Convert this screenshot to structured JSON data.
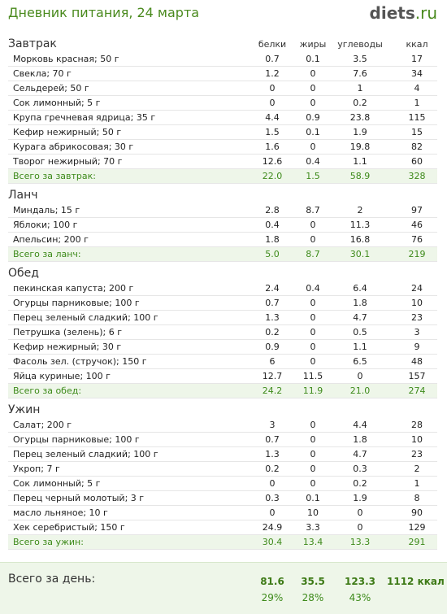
{
  "header": {
    "title": "Дневник питания, 24 марта",
    "logo_main": "diets",
    "logo_tld": ".ru"
  },
  "columns": {
    "b": "белки",
    "z": "жиры",
    "u": "углеводы",
    "k": "ккал"
  },
  "meals": [
    {
      "title": "Завтрак",
      "items": [
        [
          "Морковь красная; 50 г",
          "0.7",
          "0.1",
          "3.5",
          "17"
        ],
        [
          "Свекла; 70 г",
          "1.2",
          "0",
          "7.6",
          "34"
        ],
        [
          "Сельдерей; 50 г",
          "0",
          "0",
          "1",
          "4"
        ],
        [
          "Сок лимонный; 5 г",
          "0",
          "0",
          "0.2",
          "1"
        ],
        [
          "Крупа гречневая ядрица; 35 г",
          "4.4",
          "0.9",
          "23.8",
          "115"
        ],
        [
          "Кефир нежирный; 50 г",
          "1.5",
          "0.1",
          "1.9",
          "15"
        ],
        [
          "Курага абрикосовая; 30 г",
          "1.6",
          "0",
          "19.8",
          "82"
        ],
        [
          "Творог нежирный; 70 г",
          "12.6",
          "0.4",
          "1.1",
          "60"
        ]
      ],
      "total": [
        "Всего за завтрак:",
        "22.0",
        "1.5",
        "58.9",
        "328"
      ]
    },
    {
      "title": "Ланч",
      "items": [
        [
          "Миндаль; 15 г",
          "2.8",
          "8.7",
          "2",
          "97"
        ],
        [
          "Яблоки; 100 г",
          "0.4",
          "0",
          "11.3",
          "46"
        ],
        [
          "Апельсин; 200 г",
          "1.8",
          "0",
          "16.8",
          "76"
        ]
      ],
      "total": [
        "Всего за ланч:",
        "5.0",
        "8.7",
        "30.1",
        "219"
      ]
    },
    {
      "title": "Обед",
      "items": [
        [
          "пекинская капуста; 200 г",
          "2.4",
          "0.4",
          "6.4",
          "24"
        ],
        [
          "Огурцы парниковые; 100 г",
          "0.7",
          "0",
          "1.8",
          "10"
        ],
        [
          "Перец зеленый сладкий; 100 г",
          "1.3",
          "0",
          "4.7",
          "23"
        ],
        [
          "Петрушка (зелень); 6 г",
          "0.2",
          "0",
          "0.5",
          "3"
        ],
        [
          "Кефир нежирный; 30 г",
          "0.9",
          "0",
          "1.1",
          "9"
        ],
        [
          "Фасоль зел. (стручок); 150 г",
          "6",
          "0",
          "6.5",
          "48"
        ],
        [
          "Яйца куриные; 100 г",
          "12.7",
          "11.5",
          "0",
          "157"
        ]
      ],
      "total": [
        "Всего за обед:",
        "24.2",
        "11.9",
        "21.0",
        "274"
      ]
    },
    {
      "title": "Ужин",
      "items": [
        [
          "Салат; 200 г",
          "3",
          "0",
          "4.4",
          "28"
        ],
        [
          "Огурцы парниковые; 100 г",
          "0.7",
          "0",
          "1.8",
          "10"
        ],
        [
          "Перец зеленый сладкий; 100 г",
          "1.3",
          "0",
          "4.7",
          "23"
        ],
        [
          "Укроп; 7 г",
          "0.2",
          "0",
          "0.3",
          "2"
        ],
        [
          "Сок лимонный; 5 г",
          "0",
          "0",
          "0.2",
          "1"
        ],
        [
          "Перец черный молотый; 3 г",
          "0.3",
          "0.1",
          "1.9",
          "8"
        ],
        [
          "масло льняное; 10 г",
          "0",
          "10",
          "0",
          "90"
        ],
        [
          "Хек серебристый; 150 г",
          "24.9",
          "3.3",
          "0",
          "129"
        ]
      ],
      "total": [
        "Всего за ужин:",
        "30.4",
        "13.4",
        "13.3",
        "291"
      ]
    }
  ],
  "day_total": {
    "label": "Всего за день:",
    "b": "81.6",
    "z": "35.5",
    "u": "123.3",
    "k": "1112 ккал",
    "b_pct": "29%",
    "z_pct": "28%",
    "u_pct": "43%"
  }
}
